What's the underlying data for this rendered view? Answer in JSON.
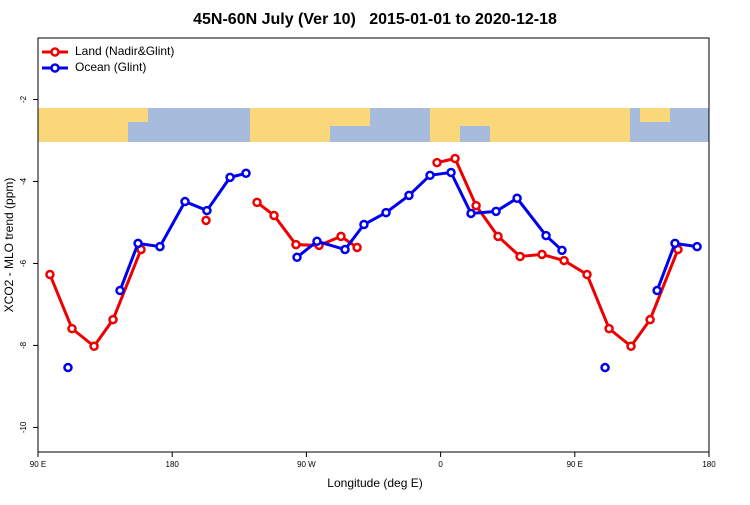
{
  "chart_data": {
    "type": "line",
    "title": "45N-60N July (Ver 10)   2015-01-01 to 2020-12-18",
    "xlabel": "Longitude (deg E)",
    "ylabel": "XCO2 - MLO trend (ppm)",
    "xlim": [
      90,
      540
    ],
    "ylim": [
      -10.6,
      -0.5
    ],
    "xticks": [
      {
        "value": 90,
        "label": "90 E"
      },
      {
        "value": 180,
        "label": "180"
      },
      {
        "value": 270,
        "label": "90 W"
      },
      {
        "value": 360,
        "label": "0"
      },
      {
        "value": 450,
        "label": "90 E"
      },
      {
        "value": 540,
        "label": "180"
      }
    ],
    "yticks": [
      -10,
      -8,
      -6,
      -4,
      -2
    ],
    "legend": "top-left",
    "series": [
      {
        "name": "Land (Nadir&Glint)",
        "color": "#ee0000",
        "x": [
          98,
          112.8,
          127.6,
          140.3,
          159.1,
          null,
          202.7,
          null,
          236.9,
          248.3,
          263.0,
          278.5,
          293.2,
          304.0,
          null,
          357.6,
          369.7,
          383.8,
          398.5,
          413.3,
          428.0,
          442.8,
          458.2,
          473.0,
          487.7,
          500.5,
          519.2
        ],
        "values": [
          -6.27,
          -7.59,
          -8.02,
          -7.37,
          -5.66,
          null,
          -4.95,
          null,
          -4.51,
          -4.83,
          -5.54,
          -5.56,
          -5.34,
          -5.61,
          null,
          -3.54,
          -3.44,
          -4.59,
          -5.34,
          -5.83,
          -5.78,
          -5.93,
          -6.27,
          -7.59,
          -8.02,
          -7.37,
          -5.66
        ]
      },
      {
        "name": "Ocean (Glint)",
        "color": "#0000ee",
        "x": [
          110.1,
          null,
          145.0,
          157.1,
          171.8,
          188.6,
          203.3,
          218.8,
          229.5,
          null,
          263.7,
          277.1,
          295.9,
          308.6,
          323.4,
          338.8,
          352.9,
          367.0,
          380.4,
          397.2,
          411.3,
          430.7,
          441.4,
          null,
          470.3,
          null,
          505.2,
          517.2,
          532.0
        ],
        "values": [
          -8.54,
          null,
          -6.66,
          -5.51,
          -5.59,
          -4.49,
          -4.71,
          -3.9,
          -3.8,
          null,
          -5.85,
          -5.46,
          -5.66,
          -5.05,
          -4.76,
          -4.34,
          -3.85,
          -3.78,
          -4.78,
          -4.73,
          -4.41,
          -5.32,
          -5.68,
          null,
          -8.54,
          null,
          -6.66,
          -5.51,
          -5.59
        ]
      }
    ]
  }
}
